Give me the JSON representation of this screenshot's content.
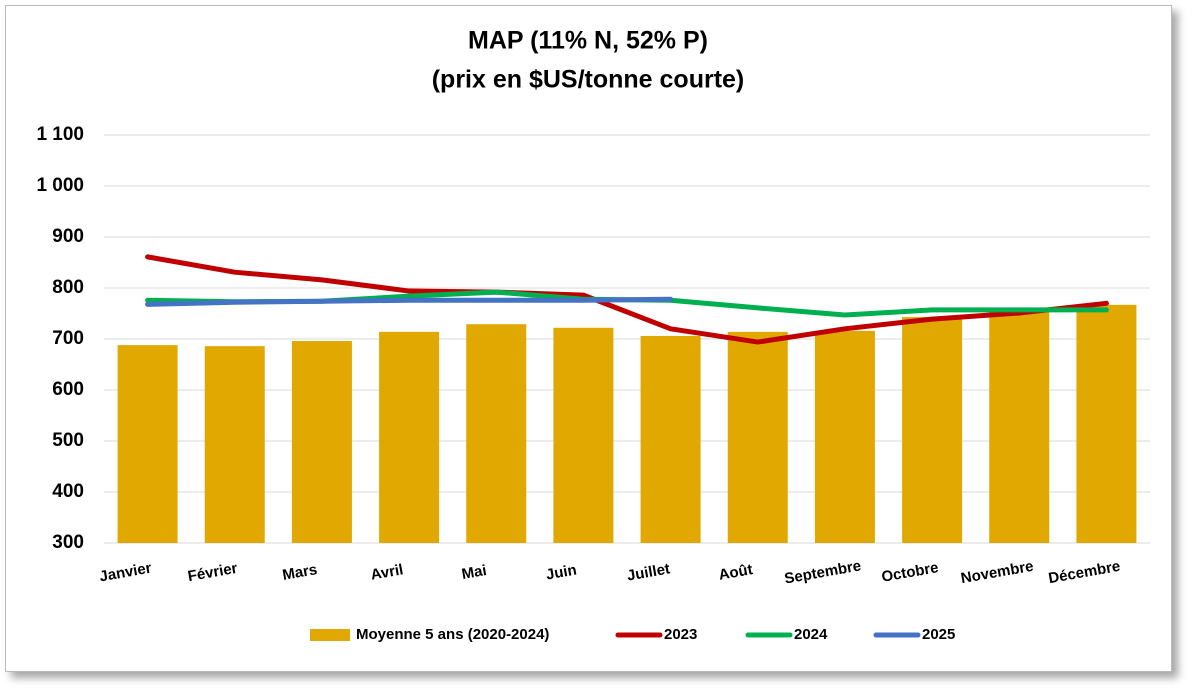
{
  "chart_data": {
    "type": "bar-line",
    "title": "MAP (11% N, 52% P)",
    "subtitle": "(prix en $US/tonne courte)",
    "categories": [
      "Janvier",
      "Février",
      "Mars",
      "Avril",
      "Mai",
      "Juin",
      "Juillet",
      "Août",
      "Septembre",
      "Octobre",
      "Novembre",
      "Décembre"
    ],
    "series": [
      {
        "name": "Moyenne 5 ans (2020-2024)",
        "kind": "bar",
        "color": "#E0A800",
        "values": [
          688,
          686,
          696,
          714,
          729,
          722,
          706,
          714,
          716,
          743,
          753,
          767
        ]
      },
      {
        "name": "2023",
        "kind": "line",
        "color": "#C00000",
        "values": [
          861,
          831,
          816,
          794,
          792,
          786,
          720,
          694,
          720,
          739,
          751,
          770
        ]
      },
      {
        "name": "2024",
        "kind": "line",
        "color": "#00B050",
        "values": [
          776,
          773,
          774,
          784,
          792,
          778,
          776,
          761,
          747,
          757,
          757,
          757
        ]
      },
      {
        "name": "2025",
        "kind": "line",
        "color": "#4472C4",
        "values": [
          768,
          772,
          774,
          776,
          776,
          776,
          778,
          null,
          null,
          null,
          null,
          null
        ]
      }
    ],
    "ylim": [
      300,
      1100
    ],
    "yticks": [
      300,
      400,
      500,
      600,
      700,
      800,
      900,
      {
        "value": 1000,
        "label": "1 000"
      },
      {
        "value": 1100,
        "label": "1 100"
      }
    ],
    "grid": true,
    "legend": "bottom"
  }
}
